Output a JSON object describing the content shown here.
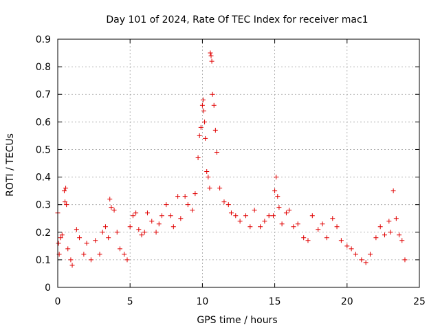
{
  "chart_data": {
    "type": "scatter",
    "title": "Day 101 of 2024, Rate Of TEC Index for receiver mac1",
    "xlabel": "GPS time / hours",
    "ylabel": "ROTI / TECUs",
    "xlim": [
      0,
      25
    ],
    "ylim": [
      0,
      0.9
    ],
    "xticks": [
      "0",
      "5",
      "10",
      "15",
      "20",
      "25"
    ],
    "yticks": [
      "0",
      "0.1",
      "0.2",
      "0.3",
      "0.4",
      "0.5",
      "0.6",
      "0.7",
      "0.8",
      "0.9"
    ],
    "grid": true,
    "marker": "+",
    "color": "#e00000",
    "series": [
      {
        "x": [
          0.0,
          0.05,
          0.1,
          0.2,
          0.3,
          0.45,
          0.5,
          0.55,
          0.6,
          0.7,
          0.9,
          1.0,
          1.3,
          1.5,
          1.8,
          2.0,
          2.3,
          2.6,
          2.9,
          3.1,
          3.3,
          3.5,
          3.6,
          3.7,
          3.9,
          4.1,
          4.3,
          4.6,
          4.8,
          5.0,
          5.2,
          5.4,
          5.6,
          5.8,
          6.0,
          6.2,
          6.5,
          6.8,
          7.0,
          7.2,
          7.5,
          7.8,
          8.0,
          8.3,
          8.5,
          8.8,
          9.0,
          9.3,
          9.5,
          9.7,
          9.8,
          9.9,
          10.0,
          10.05,
          10.1,
          10.15,
          10.2,
          10.3,
          10.4,
          10.5,
          10.55,
          10.6,
          10.65,
          10.7,
          10.8,
          10.9,
          11.0,
          11.2,
          11.5,
          11.8,
          12.0,
          12.3,
          12.6,
          13.0,
          13.3,
          13.6,
          14.0,
          14.3,
          14.6,
          14.9,
          15.0,
          15.1,
          15.2,
          15.3,
          15.5,
          15.8,
          16.0,
          16.3,
          16.6,
          17.0,
          17.3,
          17.6,
          18.0,
          18.3,
          18.6,
          19.0,
          19.3,
          19.6,
          20.0,
          20.3,
          20.6,
          21.0,
          21.3,
          21.6,
          22.0,
          22.3,
          22.6,
          22.9,
          23.0,
          23.2,
          23.4,
          23.6,
          23.8,
          24.0
        ],
        "y": [
          0.27,
          0.16,
          0.12,
          0.18,
          0.19,
          0.35,
          0.31,
          0.36,
          0.3,
          0.14,
          0.1,
          0.08,
          0.21,
          0.18,
          0.12,
          0.16,
          0.1,
          0.17,
          0.12,
          0.2,
          0.22,
          0.18,
          0.32,
          0.29,
          0.28,
          0.2,
          0.14,
          0.12,
          0.1,
          0.22,
          0.26,
          0.27,
          0.21,
          0.19,
          0.2,
          0.27,
          0.24,
          0.2,
          0.23,
          0.26,
          0.3,
          0.26,
          0.22,
          0.33,
          0.25,
          0.33,
          0.3,
          0.28,
          0.34,
          0.47,
          0.55,
          0.58,
          0.66,
          0.68,
          0.64,
          0.6,
          0.54,
          0.42,
          0.4,
          0.36,
          0.85,
          0.84,
          0.82,
          0.7,
          0.66,
          0.57,
          0.49,
          0.36,
          0.31,
          0.3,
          0.27,
          0.26,
          0.24,
          0.26,
          0.22,
          0.28,
          0.22,
          0.24,
          0.26,
          0.26,
          0.35,
          0.4,
          0.33,
          0.29,
          0.23,
          0.27,
          0.28,
          0.22,
          0.23,
          0.18,
          0.17,
          0.26,
          0.21,
          0.23,
          0.18,
          0.25,
          0.22,
          0.17,
          0.15,
          0.14,
          0.12,
          0.1,
          0.09,
          0.12,
          0.18,
          0.22,
          0.19,
          0.24,
          0.2,
          0.35,
          0.25,
          0.19,
          0.17,
          0.1
        ]
      }
    ]
  }
}
